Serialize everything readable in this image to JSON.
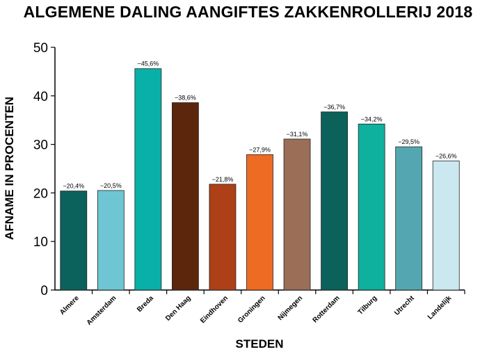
{
  "chart_data": {
    "type": "bar",
    "title": "ALGEMENE DALING AANGIFTES ZAKKENROLLERIJ 2018",
    "xlabel": "STEDEN",
    "ylabel": "AFNAME IN PROCENTEN",
    "ylim": [
      0,
      50
    ],
    "yticks": [
      "0",
      "10",
      "20",
      "30",
      "40",
      "50"
    ],
    "grid": false,
    "categories": [
      "Almere",
      "Amsterdam",
      "Breda",
      "Den Haag",
      "Eindhoven",
      "Groningen",
      "Nijmegen",
      "Rotterdam",
      "Tilburg",
      "Utrecht",
      "Landelijk"
    ],
    "values": [
      20.4,
      20.5,
      45.6,
      38.6,
      21.8,
      27.9,
      31.1,
      36.7,
      34.2,
      29.5,
      26.6
    ],
    "value_labels": [
      "−20,4%",
      "−20,5%",
      "−45,6%",
      "−38,6%",
      "−21,8%",
      "−27,9%",
      "−31,1%",
      "−36,7%",
      "−34,2%",
      "−29,5%",
      "−26,6%"
    ],
    "colors": [
      "#0b625c",
      "#6ec6d4",
      "#08b0a8",
      "#5c260d",
      "#ad4017",
      "#ee6b24",
      "#9b6e58",
      "#0c615a",
      "#0eb09e",
      "#54a7b1",
      "#cbe8f0"
    ]
  }
}
